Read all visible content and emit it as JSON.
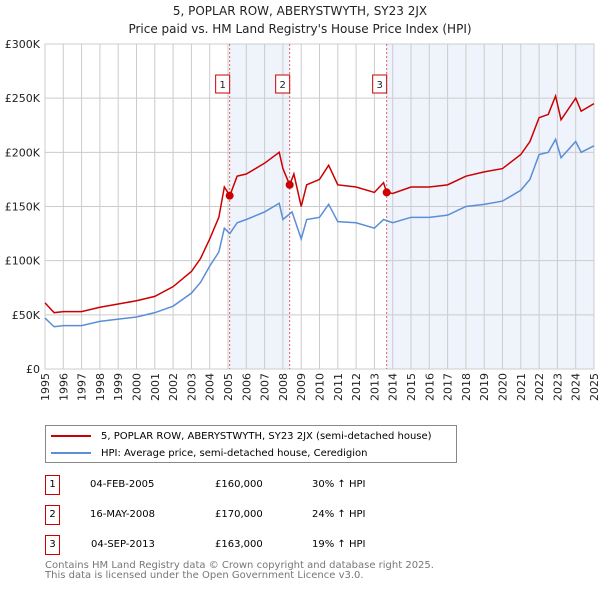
{
  "chart_data": {
    "type": "line",
    "title": "5, POPLAR ROW, ABERYSTWYTH, SY23 2JX",
    "subtitle": "Price paid vs. HM Land Registry's House Price Index (HPI)",
    "xlim": [
      1995,
      2025
    ],
    "ylim": [
      0,
      300000
    ],
    "y_ticks": [
      0,
      50000,
      100000,
      150000,
      200000,
      250000,
      300000
    ],
    "y_tick_labels": [
      "£0",
      "£50K",
      "£100K",
      "£150K",
      "£200K",
      "£250K",
      "£300K"
    ],
    "x_ticks": [
      "1995",
      "1996",
      "1997",
      "1998",
      "1999",
      "2000",
      "2001",
      "2002",
      "2003",
      "2004",
      "2005",
      "2006",
      "2007",
      "2008",
      "2009",
      "2010",
      "2011",
      "2012",
      "2013",
      "2014",
      "2015",
      "2016",
      "2017",
      "2018",
      "2019",
      "2020",
      "2021",
      "2022",
      "2023",
      "2024",
      "2025"
    ],
    "grid": true,
    "series": [
      {
        "name": "5, POPLAR ROW, ABERYSTWYTH, SY23 2JX (semi-detached house)",
        "color": "#cc0000",
        "x": [
          1995,
          1995.5,
          1996,
          1997,
          1998,
          1999,
          2000,
          2001,
          2002,
          2003,
          2003.5,
          2004,
          2004.5,
          2004.8,
          2005.1,
          2005.5,
          2006,
          2007,
          2007.8,
          2008,
          2008.37,
          2008.6,
          2009,
          2009.3,
          2010,
          2010.5,
          2011,
          2012,
          2013,
          2013.5,
          2013.67,
          2014,
          2015,
          2016,
          2017,
          2018,
          2019,
          2020,
          2021,
          2021.5,
          2022,
          2022.5,
          2022.9,
          2023.2,
          2024,
          2024.3,
          2025
        ],
        "y": [
          61000,
          52000,
          53000,
          53000,
          57000,
          60000,
          63000,
          67000,
          76000,
          90000,
          102000,
          120000,
          140000,
          168000,
          160000,
          178000,
          180000,
          190000,
          200000,
          185000,
          170000,
          180000,
          150000,
          170000,
          175000,
          188000,
          170000,
          168000,
          163000,
          172000,
          163000,
          162000,
          168000,
          168000,
          170000,
          178000,
          182000,
          185000,
          198000,
          210000,
          232000,
          235000,
          252000,
          230000,
          250000,
          238000,
          245000
        ]
      },
      {
        "name": "HPI: Average price, semi-detached house, Ceredigion",
        "color": "#5b8ed6",
        "x": [
          1995,
          1995.5,
          1996,
          1997,
          1998,
          1999,
          2000,
          2001,
          2002,
          2003,
          2003.5,
          2004,
          2004.5,
          2004.8,
          2005.1,
          2005.5,
          2006,
          2007,
          2007.8,
          2008,
          2008.5,
          2009,
          2009.3,
          2010,
          2010.5,
          2011,
          2012,
          2013,
          2013.5,
          2014,
          2015,
          2016,
          2017,
          2018,
          2019,
          2020,
          2021,
          2021.5,
          2022,
          2022.5,
          2022.9,
          2023.2,
          2024,
          2024.3,
          2025
        ],
        "y": [
          47000,
          39000,
          40000,
          40000,
          44000,
          46000,
          48000,
          52000,
          58000,
          70000,
          80000,
          95000,
          108000,
          130000,
          125000,
          135000,
          138000,
          145000,
          153000,
          138000,
          145000,
          120000,
          138000,
          140000,
          152000,
          136000,
          135000,
          130000,
          138000,
          135000,
          140000,
          140000,
          142000,
          150000,
          152000,
          155000,
          165000,
          175000,
          198000,
          200000,
          212000,
          195000,
          210000,
          200000,
          206000
        ]
      }
    ],
    "sales": [
      {
        "id": "1",
        "x": 2005.09,
        "date": "04-FEB-2005",
        "price": 160000,
        "price_label": "£160,000",
        "hpi": "30% ↑ HPI"
      },
      {
        "id": "2",
        "x": 2008.37,
        "date": "16-MAY-2008",
        "price": 170000,
        "price_label": "£170,000",
        "hpi": "24% ↑ HPI"
      },
      {
        "id": "3",
        "x": 2013.67,
        "date": "04-SEP-2013",
        "price": 163000,
        "price_label": "£163,000",
        "hpi": "19% ↑ HPI"
      }
    ],
    "legend_placement": "below"
  },
  "footer": {
    "line1": "Contains HM Land Registry data © Crown copyright and database right 2025.",
    "line2": "This data is licensed under the Open Government Licence v3.0."
  },
  "colors": {
    "shade": "#eef3fc",
    "grid": "#cccccc"
  }
}
